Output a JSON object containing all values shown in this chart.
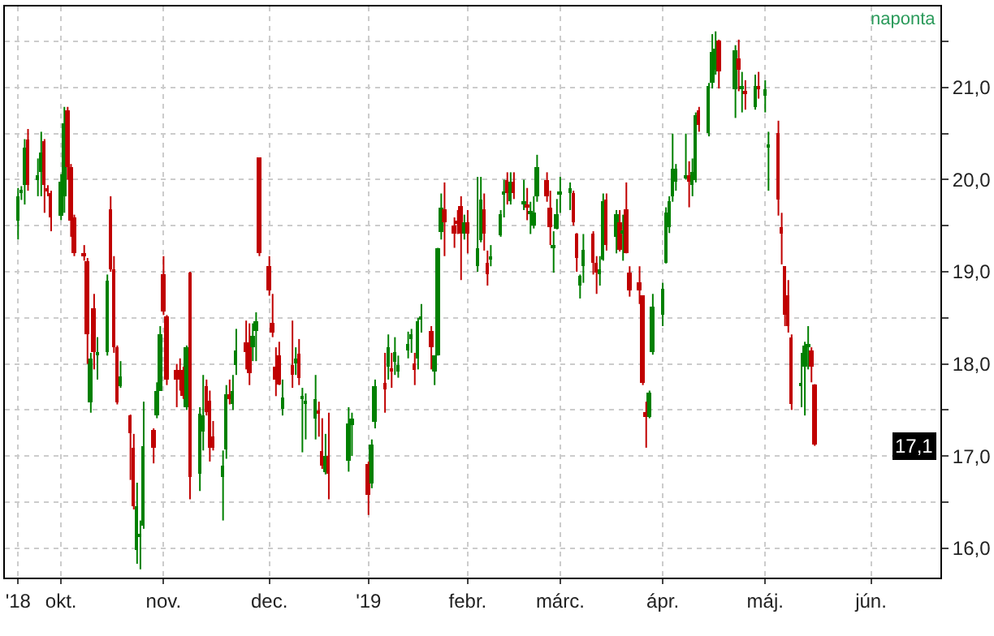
{
  "chart_data": {
    "type": "candlestick",
    "x": [
      "2018-09-18",
      "2018-09-19",
      "2018-09-20",
      "2018-09-21",
      "2018-09-24",
      "2018-09-25",
      "2018-09-26",
      "2018-09-27",
      "2018-09-28",
      "2018-10-01",
      "2018-10-02",
      "2018-10-03",
      "2018-10-04",
      "2018-10-05",
      "2018-10-08",
      "2018-10-09",
      "2018-10-10",
      "2018-10-11",
      "2018-10-12",
      "2018-10-15",
      "2018-10-16",
      "2018-10-17",
      "2018-10-18",
      "2018-10-19",
      "2018-10-22",
      "2018-10-23",
      "2018-10-24",
      "2018-10-25",
      "2018-10-26",
      "2018-10-29",
      "2018-10-30",
      "2018-10-31",
      "2018-11-01",
      "2018-11-02",
      "2018-11-05",
      "2018-11-06",
      "2018-11-07",
      "2018-11-08",
      "2018-11-09",
      "2018-11-12",
      "2018-11-13",
      "2018-11-14",
      "2018-11-15",
      "2018-11-16",
      "2018-11-19",
      "2018-11-20",
      "2018-11-21",
      "2018-11-22",
      "2018-11-23",
      "2018-11-26",
      "2018-11-27",
      "2018-11-28",
      "2018-11-29",
      "2018-11-30",
      "2018-12-03",
      "2018-12-04",
      "2018-12-05",
      "2018-12-06",
      "2018-12-07",
      "2018-12-10",
      "2018-12-11",
      "2018-12-12",
      "2018-12-13",
      "2018-12-14",
      "2018-12-17",
      "2018-12-18",
      "2018-12-19",
      "2018-12-20",
      "2018-12-21",
      "2018-12-27",
      "2018-12-28",
      "2019-01-02",
      "2019-01-03",
      "2019-01-04",
      "2019-01-07",
      "2019-01-08",
      "2019-01-09",
      "2019-01-10",
      "2019-01-11",
      "2019-01-14",
      "2019-01-15",
      "2019-01-16",
      "2019-01-17",
      "2019-01-18",
      "2019-01-21",
      "2019-01-22",
      "2019-01-23",
      "2019-01-24",
      "2019-01-25",
      "2019-01-28",
      "2019-01-29",
      "2019-01-30",
      "2019-01-31",
      "2019-02-01",
      "2019-02-04",
      "2019-02-05",
      "2019-02-06",
      "2019-02-07",
      "2019-02-08",
      "2019-02-11",
      "2019-02-12",
      "2019-02-13",
      "2019-02-14",
      "2019-02-15",
      "2019-02-18",
      "2019-02-19",
      "2019-02-20",
      "2019-02-21",
      "2019-02-22",
      "2019-02-25",
      "2019-02-26",
      "2019-02-27",
      "2019-02-28",
      "2019-03-01",
      "2019-03-04",
      "2019-03-05",
      "2019-03-06",
      "2019-03-07",
      "2019-03-08",
      "2019-03-11",
      "2019-03-12",
      "2019-03-13",
      "2019-03-14",
      "2019-03-15",
      "2019-03-18",
      "2019-03-19",
      "2019-03-20",
      "2019-03-21",
      "2019-03-22",
      "2019-03-25",
      "2019-03-26",
      "2019-03-27",
      "2019-03-28",
      "2019-03-29",
      "2019-04-01",
      "2019-04-02",
      "2019-04-03",
      "2019-04-04",
      "2019-04-05",
      "2019-04-08",
      "2019-04-09",
      "2019-04-10",
      "2019-04-11",
      "2019-04-12",
      "2019-04-15",
      "2019-04-16",
      "2019-04-17",
      "2019-04-18",
      "2019-04-23",
      "2019-04-24",
      "2019-04-25",
      "2019-04-26",
      "2019-04-29",
      "2019-04-30",
      "2019-05-02",
      "2019-05-03",
      "2019-05-06",
      "2019-05-07",
      "2019-05-08",
      "2019-05-09",
      "2019-05-10",
      "2019-05-13",
      "2019-05-14",
      "2019-05-15",
      "2019-05-16",
      "2019-05-17"
    ],
    "ohlc": [
      [
        19.56,
        19.91,
        19.35,
        19.82
      ],
      [
        19.86,
        19.93,
        19.78,
        19.88
      ],
      [
        19.94,
        20.44,
        19.73,
        20.35
      ],
      [
        20.44,
        20.55,
        19.88,
        19.94
      ],
      [
        19.99,
        20.23,
        19.82,
        20.05
      ],
      [
        20.08,
        20.52,
        19.82,
        20.29
      ],
      [
        20.41,
        20.44,
        19.64,
        19.94
      ],
      [
        19.91,
        19.94,
        19.82,
        19.87
      ],
      [
        19.85,
        19.88,
        19.44,
        19.59
      ],
      [
        19.6,
        20.06,
        19.56,
        19.97
      ],
      [
        19.82,
        20.79,
        19.64,
        20.61
      ],
      [
        20.76,
        20.79,
        20.0,
        20.14
      ],
      [
        20.14,
        20.17,
        19.38,
        19.56
      ],
      [
        19.59,
        19.62,
        19.17,
        19.2
      ],
      [
        19.2,
        19.29,
        19.12,
        19.16
      ],
      [
        19.12,
        19.15,
        18.0,
        18.32
      ],
      [
        17.59,
        18.12,
        17.47,
        18.06
      ],
      [
        18.6,
        18.76,
        17.94,
        18.12
      ],
      [
        18.1,
        18.29,
        17.83,
        18.13
      ],
      [
        18.12,
        18.97,
        18.09,
        18.91
      ],
      [
        19.67,
        19.82,
        19.0,
        19.03
      ],
      [
        19.03,
        19.17,
        18.12,
        18.18
      ],
      [
        18.18,
        18.2,
        17.56,
        17.59
      ],
      [
        17.76,
        18.03,
        17.74,
        17.86
      ],
      [
        17.44,
        17.45,
        16.74,
        17.24
      ],
      [
        17.09,
        17.24,
        16.42,
        16.45
      ],
      [
        15.98,
        16.71,
        15.83,
        16.45
      ],
      [
        16.13,
        16.3,
        15.77,
        16.15
      ],
      [
        16.25,
        17.59,
        16.21,
        17.11
      ],
      [
        17.28,
        17.3,
        16.92,
        17.09
      ],
      [
        17.44,
        17.8,
        17.41,
        17.71
      ],
      [
        17.71,
        18.41,
        17.71,
        18.32
      ],
      [
        18.97,
        19.17,
        18.53,
        18.56
      ],
      [
        18.52,
        18.53,
        17.77,
        17.83
      ],
      [
        17.94,
        18.0,
        17.53,
        17.83
      ],
      [
        17.94,
        18.06,
        17.71,
        17.83
      ],
      [
        17.94,
        17.97,
        17.62,
        17.66
      ],
      [
        17.53,
        18.2,
        17.5,
        18.18
      ],
      [
        19.0,
        19.0,
        16.53,
        16.77
      ],
      [
        16.8,
        17.53,
        16.62,
        17.46
      ],
      [
        17.27,
        17.88,
        17.06,
        17.44
      ],
      [
        17.75,
        17.83,
        17.44,
        17.47
      ],
      [
        17.6,
        17.71,
        16.94,
        17.09
      ],
      [
        17.21,
        17.38,
        17.06,
        17.09
      ],
      [
        16.77,
        17.06,
        16.3,
        16.89
      ],
      [
        17.07,
        17.77,
        16.97,
        17.67
      ],
      [
        17.67,
        17.83,
        17.56,
        17.62
      ],
      [
        17.56,
        17.88,
        17.5,
        17.71
      ],
      [
        17.99,
        18.38,
        17.88,
        18.15
      ],
      [
        18.24,
        18.47,
        17.94,
        18.13
      ],
      [
        18.24,
        18.44,
        17.77,
        17.9
      ],
      [
        18.19,
        18.44,
        18.03,
        18.31
      ],
      [
        18.35,
        18.56,
        18.03,
        18.47
      ],
      [
        20.24,
        20.24,
        19.17,
        19.2
      ],
      [
        19.06,
        19.17,
        18.74,
        18.79
      ],
      [
        18.44,
        18.76,
        18.29,
        18.34
      ],
      [
        17.97,
        18.18,
        17.65,
        17.83
      ],
      [
        18.09,
        18.24,
        17.77,
        17.77
      ],
      [
        17.52,
        17.83,
        17.44,
        17.64
      ],
      [
        17.99,
        18.47,
        17.74,
        17.88
      ],
      [
        18.0,
        18.18,
        17.88,
        18.05
      ],
      [
        18.11,
        18.27,
        17.77,
        17.84
      ],
      [
        17.62,
        17.74,
        17.04,
        17.64
      ],
      [
        17.58,
        17.68,
        17.18,
        17.6
      ],
      [
        17.41,
        17.88,
        17.18,
        17.62
      ],
      [
        17.5,
        17.59,
        17.21,
        17.47
      ],
      [
        17.06,
        17.41,
        16.86,
        16.89
      ],
      [
        16.83,
        17.24,
        16.8,
        17.0
      ],
      [
        17.0,
        17.47,
        16.53,
        16.8
      ],
      [
        16.94,
        17.53,
        16.83,
        17.36
      ],
      [
        17.33,
        17.47,
        17.0,
        17.4
      ],
      [
        16.92,
        16.94,
        16.36,
        16.58
      ],
      [
        16.71,
        17.18,
        16.65,
        17.12
      ],
      [
        17.37,
        17.83,
        17.3,
        17.75
      ],
      [
        17.8,
        18.12,
        17.47,
        17.72
      ],
      [
        17.97,
        18.32,
        17.83,
        18.18
      ],
      [
        17.96,
        18.12,
        17.74,
        17.93
      ],
      [
        18.03,
        18.29,
        17.88,
        18.12
      ],
      [
        17.91,
        18.09,
        17.85,
        17.99
      ],
      [
        18.15,
        18.35,
        18.06,
        18.22
      ],
      [
        18.27,
        18.38,
        18.12,
        18.32
      ],
      [
        18.01,
        18.12,
        17.77,
        17.93
      ],
      [
        18.06,
        18.5,
        17.94,
        18.47
      ],
      [
        18.49,
        18.65,
        18.34,
        18.51
      ],
      [
        18.36,
        18.41,
        17.94,
        18.18
      ],
      [
        17.91,
        18.09,
        17.77,
        18.09
      ],
      [
        18.09,
        19.26,
        18.09,
        19.26
      ],
      [
        19.44,
        19.85,
        19.35,
        19.7
      ],
      [
        19.67,
        19.97,
        19.17,
        19.53
      ],
      [
        19.5,
        19.59,
        19.26,
        19.42
      ],
      [
        19.54,
        19.67,
        19.41,
        19.52
      ],
      [
        19.71,
        19.82,
        18.91,
        19.41
      ],
      [
        19.41,
        19.62,
        19.35,
        19.54
      ],
      [
        19.54,
        19.67,
        19.2,
        19.41
      ],
      [
        19.06,
        20.03,
        19.0,
        19.26
      ],
      [
        19.35,
        20.03,
        19.32,
        19.79
      ],
      [
        19.67,
        19.85,
        19.23,
        19.41
      ],
      [
        19.1,
        19.23,
        18.85,
        18.97
      ],
      [
        19.14,
        19.29,
        19.06,
        19.16
      ],
      [
        19.4,
        19.67,
        19.38,
        19.63
      ],
      [
        19.84,
        20.0,
        19.59,
        19.86
      ],
      [
        20.0,
        20.08,
        19.73,
        19.85
      ],
      [
        19.76,
        20.08,
        19.73,
        19.97
      ],
      [
        19.97,
        20.08,
        19.79,
        19.85
      ],
      [
        19.74,
        20.0,
        19.67,
        19.76
      ],
      [
        19.72,
        19.91,
        19.56,
        19.7
      ],
      [
        19.63,
        19.76,
        19.41,
        19.65
      ],
      [
        19.5,
        19.82,
        19.47,
        19.64
      ],
      [
        19.82,
        20.27,
        19.76,
        20.14
      ],
      [
        20.0,
        20.08,
        19.76,
        19.82
      ],
      [
        19.7,
        19.88,
        19.29,
        19.48
      ],
      [
        19.26,
        19.44,
        18.99,
        19.29
      ],
      [
        19.47,
        19.79,
        19.46,
        19.63
      ],
      [
        19.84,
        20.03,
        19.64,
        19.86
      ],
      [
        19.87,
        19.97,
        19.67,
        19.9
      ],
      [
        19.85,
        19.88,
        19.5,
        19.53
      ],
      [
        19.42,
        19.42,
        19.0,
        19.15
      ],
      [
        18.85,
        18.97,
        18.71,
        18.95
      ],
      [
        19.07,
        19.41,
        18.88,
        19.23
      ],
      [
        19.41,
        19.44,
        18.97,
        19.09
      ],
      [
        19.09,
        19.17,
        18.76,
        19.0
      ],
      [
        18.97,
        19.17,
        18.85,
        19.03
      ],
      [
        19.13,
        19.85,
        19.12,
        19.77
      ],
      [
        19.79,
        19.85,
        19.23,
        19.29
      ],
      [
        19.38,
        19.67,
        19.2,
        19.62
      ],
      [
        19.53,
        19.67,
        19.22,
        19.23
      ],
      [
        19.42,
        19.62,
        19.12,
        19.45
      ],
      [
        19.67,
        19.97,
        19.2,
        19.2
      ],
      [
        19.0,
        19.06,
        18.73,
        18.79
      ],
      [
        18.88,
        19.06,
        18.65,
        18.79
      ],
      [
        18.74,
        18.74,
        17.77,
        17.8
      ],
      [
        17.47,
        17.59,
        17.09,
        17.43
      ],
      [
        17.43,
        17.71,
        17.41,
        17.68
      ],
      [
        18.12,
        18.76,
        18.1,
        18.62
      ],
      [
        18.54,
        18.88,
        18.41,
        18.82
      ],
      [
        19.09,
        19.7,
        19.09,
        19.64
      ],
      [
        19.48,
        19.82,
        19.42,
        19.77
      ],
      [
        19.82,
        20.5,
        19.76,
        20.11
      ],
      [
        19.97,
        20.17,
        19.88,
        20.11
      ],
      [
        20.03,
        20.5,
        20.0,
        20.05
      ],
      [
        20.04,
        20.2,
        19.7,
        19.97
      ],
      [
        19.94,
        20.23,
        19.82,
        20.08
      ],
      [
        20.0,
        20.73,
        19.97,
        20.7
      ],
      [
        20.76,
        20.79,
        20.52,
        20.6
      ],
      [
        20.5,
        21.05,
        20.47,
        21.02
      ],
      [
        21.05,
        21.58,
        20.99,
        21.38
      ],
      [
        21.2,
        21.61,
        21.14,
        21.43
      ],
      [
        21.51,
        21.52,
        20.99,
        21.17
      ],
      [
        20.99,
        21.46,
        20.67,
        21.4
      ],
      [
        21.31,
        21.52,
        20.96,
        21.2
      ],
      [
        20.99,
        21.17,
        20.73,
        21.01
      ],
      [
        20.95,
        21.08,
        20.76,
        20.93
      ],
      [
        20.79,
        21.14,
        20.76,
        21.02
      ],
      [
        21.01,
        21.17,
        20.88,
        20.99
      ],
      [
        20.91,
        21.08,
        20.73,
        20.99
      ],
      [
        20.35,
        20.52,
        19.88,
        20.37
      ],
      [
        20.5,
        20.64,
        19.61,
        19.79
      ],
      [
        19.48,
        19.64,
        19.08,
        19.42
      ],
      [
        19.06,
        19.06,
        18.41,
        18.54
      ],
      [
        18.74,
        18.91,
        18.34,
        18.41
      ],
      [
        18.29,
        18.32,
        17.5,
        17.56
      ],
      [
        17.76,
        18.12,
        17.53,
        17.78
      ],
      [
        17.97,
        18.24,
        17.44,
        18.2
      ],
      [
        18.19,
        18.41,
        17.94,
        18.21
      ],
      [
        18.15,
        18.18,
        17.8,
        17.97
      ],
      [
        17.78,
        17.78,
        17.11,
        17.12
      ]
    ],
    "colors": [
      "#008000",
      "#008000",
      "#008000",
      "#c00000",
      "#008000",
      "#008000",
      "#c00000",
      "#c00000",
      "#c00000",
      "#008000",
      "#008000",
      "#c00000",
      "#c00000",
      "#c00000",
      "#c00000",
      "#c00000",
      "#008000",
      "#c00000",
      "#008000",
      "#008000",
      "#c00000",
      "#c00000",
      "#c00000",
      "#008000",
      "#c00000",
      "#c00000",
      "#008000",
      "#008000",
      "#008000",
      "#c00000",
      "#008000",
      "#008000",
      "#c00000",
      "#c00000",
      "#c00000",
      "#c00000",
      "#c00000",
      "#008000",
      "#c00000",
      "#008000",
      "#008000",
      "#c00000",
      "#c00000",
      "#c00000",
      "#008000",
      "#008000",
      "#c00000",
      "#008000",
      "#008000",
      "#c00000",
      "#c00000",
      "#008000",
      "#008000",
      "#c00000",
      "#c00000",
      "#c00000",
      "#c00000",
      "#c00000",
      "#008000",
      "#c00000",
      "#008000",
      "#c00000",
      "#008000",
      "#008000",
      "#008000",
      "#c00000",
      "#c00000",
      "#008000",
      "#c00000",
      "#008000",
      "#008000",
      "#c00000",
      "#008000",
      "#008000",
      "#c00000",
      "#008000",
      "#c00000",
      "#008000",
      "#008000",
      "#008000",
      "#008000",
      "#c00000",
      "#008000",
      "#008000",
      "#c00000",
      "#008000",
      "#008000",
      "#008000",
      "#c00000",
      "#c00000",
      "#c00000",
      "#c00000",
      "#008000",
      "#c00000",
      "#008000",
      "#008000",
      "#c00000",
      "#c00000",
      "#008000",
      "#008000",
      "#008000",
      "#c00000",
      "#008000",
      "#c00000",
      "#008000",
      "#c00000",
      "#008000",
      "#008000",
      "#008000",
      "#c00000",
      "#c00000",
      "#008000",
      "#008000",
      "#008000",
      "#008000",
      "#c00000",
      "#c00000",
      "#008000",
      "#008000",
      "#c00000",
      "#c00000",
      "#008000",
      "#008000",
      "#c00000",
      "#008000",
      "#c00000",
      "#008000",
      "#c00000",
      "#c00000",
      "#c00000",
      "#c00000",
      "#c00000",
      "#008000",
      "#008000",
      "#008000",
      "#008000",
      "#008000",
      "#008000",
      "#008000",
      "#008000",
      "#c00000",
      "#008000",
      "#008000",
      "#c00000",
      "#008000",
      "#008000",
      "#008000",
      "#c00000",
      "#008000",
      "#c00000",
      "#008000",
      "#c00000",
      "#008000",
      "#c00000",
      "#008000",
      "#008000",
      "#c00000",
      "#c00000",
      "#c00000",
      "#c00000",
      "#c00000",
      "#008000",
      "#008000",
      "#008000",
      "#c00000",
      "#c00000"
    ],
    "xlim": [
      "2018-09-14",
      "2019-06-24"
    ],
    "xticks": [
      {
        "value": "2018-09-18",
        "label": "'18"
      },
      {
        "value": "2018-10-01",
        "label": "okt."
      },
      {
        "value": "2018-11-01",
        "label": "nov."
      },
      {
        "value": "2018-12-03",
        "label": "dec."
      },
      {
        "value": "2019-01-02",
        "label": "'19"
      },
      {
        "value": "2019-02-01",
        "label": "febr."
      },
      {
        "value": "2019-03-01",
        "label": "márc."
      },
      {
        "value": "2019-04-01",
        "label": "ápr."
      },
      {
        "value": "2019-05-02",
        "label": "máj."
      },
      {
        "value": "2019-06-03",
        "label": "jún."
      }
    ],
    "ylim": [
      15.68,
      21.88
    ],
    "yticks": [
      {
        "value": 16,
        "label": "16,0"
      },
      {
        "value": 16.5,
        "label": null
      },
      {
        "value": 17,
        "label": "17,0"
      },
      {
        "value": 17.5,
        "label": null
      },
      {
        "value": 18,
        "label": "18,0"
      },
      {
        "value": 18.5,
        "label": null
      },
      {
        "value": 19,
        "label": "19,0"
      },
      {
        "value": 19.5,
        "label": null
      },
      {
        "value": 20,
        "label": "20,0"
      },
      {
        "value": 20.5,
        "label": null
      },
      {
        "value": 21,
        "label": "21,0"
      },
      {
        "value": 21.5,
        "label": null
      }
    ],
    "grid": true,
    "legend": false,
    "annotations": [
      "naponta",
      {
        "text": "17,1",
        "y": 17.1
      }
    ]
  }
}
